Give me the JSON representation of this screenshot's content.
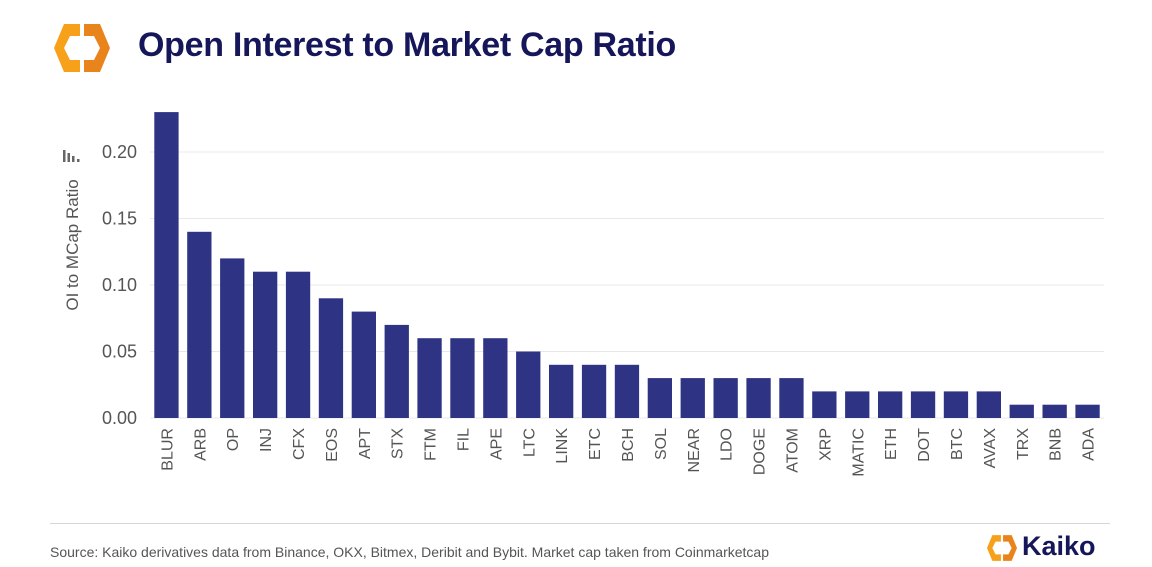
{
  "header": {
    "title": "Open Interest to Market Cap Ratio",
    "logo_icon": "kaiko-logo-icon"
  },
  "footer": {
    "source": "Source: Kaiko derivatives data from Binance, OKX, Bitmex, Deribit and Bybit. Market cap taken from Coinmarketcap",
    "brand_name": "Kaiko"
  },
  "colors": {
    "bar": "#2e3483",
    "title": "#16165a",
    "logo_orange": "#f7a11a",
    "logo_orange_dark": "#e9841d"
  },
  "chart_data": {
    "type": "bar",
    "title": "Open Interest to Market Cap Ratio",
    "xlabel": "",
    "ylabel": "OI to MCap Ratio",
    "ylim": [
      0,
      0.23
    ],
    "yticks": [
      "0.00",
      "0.05",
      "0.10",
      "0.15",
      "0.20"
    ],
    "ytick_values": [
      0,
      0.05,
      0.1,
      0.15,
      0.2
    ],
    "grid": true,
    "legend": "none",
    "categories": [
      "BLUR",
      "ARB",
      "OP",
      "INJ",
      "CFX",
      "EOS",
      "APT",
      "STX",
      "FTM",
      "FIL",
      "APE",
      "LTC",
      "LINK",
      "ETC",
      "BCH",
      "SOL",
      "NEAR",
      "LDO",
      "DOGE",
      "ATOM",
      "XRP",
      "MATIC",
      "ETH",
      "DOT",
      "BTC",
      "AVAX",
      "TRX",
      "BNB",
      "ADA"
    ],
    "values": [
      0.23,
      0.14,
      0.12,
      0.11,
      0.11,
      0.09,
      0.08,
      0.07,
      0.06,
      0.06,
      0.06,
      0.05,
      0.04,
      0.04,
      0.04,
      0.03,
      0.03,
      0.03,
      0.03,
      0.03,
      0.02,
      0.02,
      0.02,
      0.02,
      0.02,
      0.02,
      0.01,
      0.01,
      0.01
    ]
  }
}
